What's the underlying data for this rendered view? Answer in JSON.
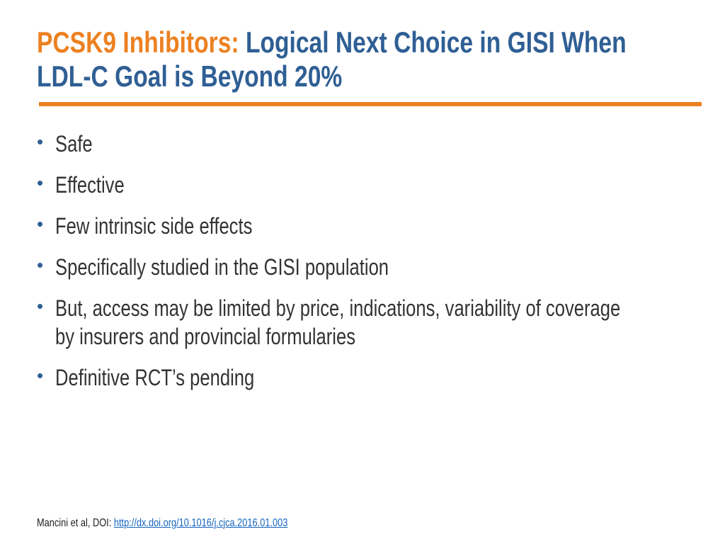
{
  "title": {
    "prefix": "PCSK9 Inhibitors:",
    "line1": "Logical Next Choice in GISI When",
    "line2": "LDL-C Goal is Beyond 20%"
  },
  "bullets": [
    {
      "lines": [
        "Safe"
      ]
    },
    {
      "lines": [
        "Effective"
      ]
    },
    {
      "lines": [
        "Few intrinsic side effects"
      ]
    },
    {
      "lines": [
        "Specifically studied in the GISI population"
      ]
    },
    {
      "lines": [
        "But, access may be limited by price, indications, variability of coverage",
        "by insurers and provincial formularies"
      ]
    },
    {
      "lines": [
        "Definitive RCT’s pending"
      ]
    }
  ],
  "footer": {
    "citation": "Mancini et al, DOI:",
    "link": "http://dx.doi.org/10.1016/j.cjca.2016.01.003"
  }
}
